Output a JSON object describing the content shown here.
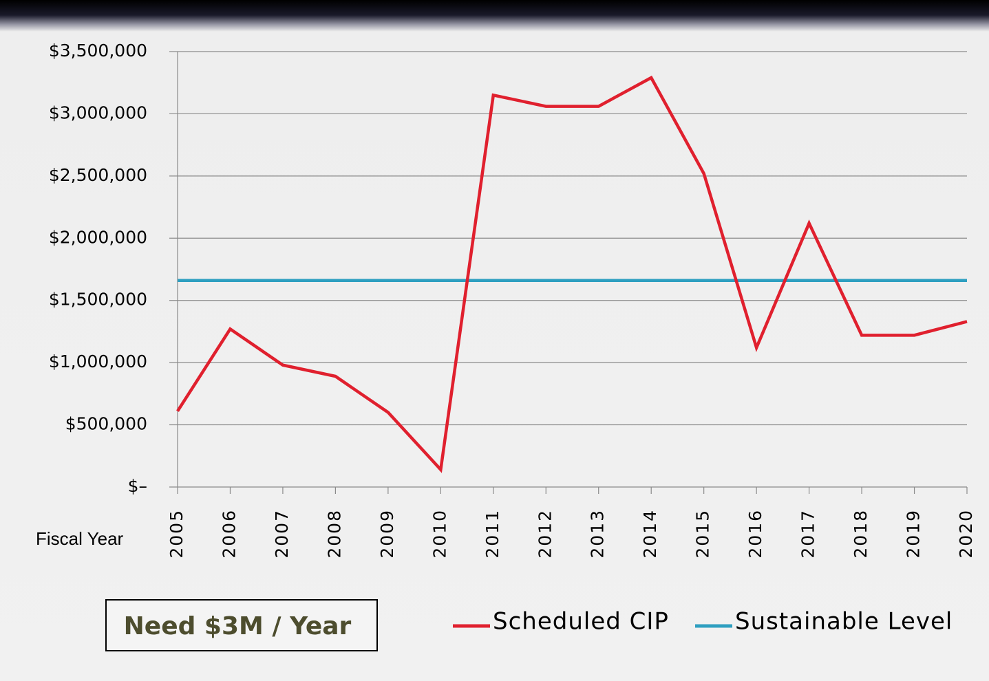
{
  "chart_data": {
    "type": "line",
    "x_label": "Fiscal Year",
    "annotation": "Need $3M / Year",
    "categories": [
      "2005",
      "2006",
      "2007",
      "2008",
      "2009",
      "2010",
      "2011",
      "2012",
      "2013",
      "2014",
      "2015",
      "2016",
      "2017",
      "2018",
      "2019",
      "2020"
    ],
    "series": [
      {
        "name": "Scheduled CIP",
        "color": "#e0202e",
        "values": [
          610000,
          1270000,
          980000,
          890000,
          600000,
          140000,
          3150000,
          3060000,
          3060000,
          3290000,
          2520000,
          1120000,
          2120000,
          1220000,
          1220000,
          1330000
        ]
      },
      {
        "name": "Sustainable Level",
        "color": "#2e9fc0",
        "values": [
          1660000,
          1660000,
          1660000,
          1660000,
          1660000,
          1660000,
          1660000,
          1660000,
          1660000,
          1660000,
          1660000,
          1660000,
          1660000,
          1660000,
          1660000,
          1660000
        ]
      }
    ],
    "ylim": [
      0,
      3500000
    ],
    "yticks": [
      {
        "value": 0,
        "label": "$–"
      },
      {
        "value": 500000,
        "label": "$500,000"
      },
      {
        "value": 1000000,
        "label": "$1,000,000"
      },
      {
        "value": 1500000,
        "label": "$1,500,000"
      },
      {
        "value": 2000000,
        "label": "$2,000,000"
      },
      {
        "value": 2500000,
        "label": "$2,500,000"
      },
      {
        "value": 3000000,
        "label": "$3,000,000"
      },
      {
        "value": 3500000,
        "label": "$3,500,000"
      }
    ],
    "grid": true
  }
}
